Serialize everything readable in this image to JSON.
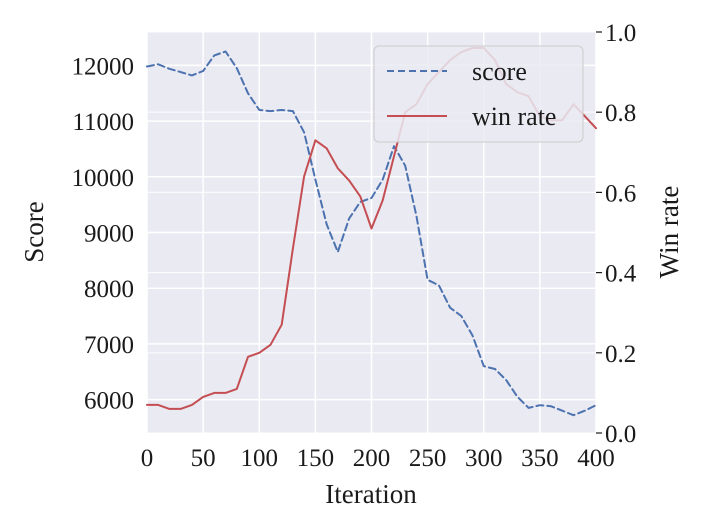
{
  "chart_data": {
    "type": "line",
    "title": "",
    "xlabel": "Iteration",
    "ylabel_left": "Score",
    "ylabel_right": "Win rate",
    "xlim": [
      0,
      400
    ],
    "ylim_left": [
      5400,
      12600
    ],
    "ylim_right": [
      0.0,
      1.0
    ],
    "x_ticks": [
      "0",
      "50",
      "100",
      "150",
      "200",
      "250",
      "300",
      "350",
      "400"
    ],
    "y_left_ticks": [
      "6000",
      "7000",
      "8000",
      "9000",
      "10000",
      "11000",
      "12000"
    ],
    "y_right_ticks": [
      "0.0",
      "0.2",
      "0.4",
      "0.6",
      "0.8",
      "1.0"
    ],
    "grid": true,
    "legend_position": "top-right",
    "colors": {
      "score": "#4c72b0",
      "win_rate": "#c44e52",
      "plot_bg": "#eaeaf2",
      "grid": "#ffffff"
    },
    "series": [
      {
        "name": "score",
        "axis": "left",
        "style": "dashed",
        "x": [
          0,
          10,
          20,
          30,
          40,
          50,
          60,
          70,
          80,
          90,
          100,
          110,
          120,
          130,
          140,
          150,
          160,
          170,
          180,
          190,
          200,
          210,
          220,
          230,
          240,
          250,
          260,
          270,
          280,
          290,
          300,
          310,
          320,
          330,
          340,
          350,
          360,
          370,
          380,
          390,
          400
        ],
        "y": [
          11980,
          12020,
          11940,
          11880,
          11820,
          11900,
          12180,
          12250,
          11950,
          11500,
          11200,
          11180,
          11200,
          11180,
          10800,
          9950,
          9150,
          8650,
          9250,
          9550,
          9620,
          9950,
          10550,
          10200,
          9300,
          8150,
          8050,
          7650,
          7500,
          7150,
          6600,
          6550,
          6350,
          6050,
          5850,
          5900,
          5880,
          5800,
          5720,
          5800,
          5900
        ]
      },
      {
        "name": "win rate",
        "axis": "right",
        "style": "solid",
        "x": [
          0,
          10,
          20,
          30,
          40,
          50,
          60,
          70,
          80,
          90,
          100,
          110,
          120,
          130,
          140,
          150,
          160,
          170,
          180,
          190,
          200,
          210,
          220,
          230,
          240,
          250,
          260,
          270,
          280,
          290,
          300,
          310,
          320,
          330,
          340,
          350,
          360,
          370,
          380,
          390,
          400
        ],
        "y": [
          0.07,
          0.07,
          0.06,
          0.06,
          0.07,
          0.09,
          0.1,
          0.1,
          0.11,
          0.19,
          0.2,
          0.22,
          0.27,
          0.46,
          0.64,
          0.73,
          0.71,
          0.66,
          0.63,
          0.59,
          0.51,
          0.58,
          0.69,
          0.8,
          0.82,
          0.87,
          0.9,
          0.93,
          0.95,
          0.96,
          0.96,
          0.93,
          0.87,
          0.85,
          0.84,
          0.79,
          0.78,
          0.78,
          0.82,
          0.79,
          0.76
        ]
      }
    ]
  }
}
